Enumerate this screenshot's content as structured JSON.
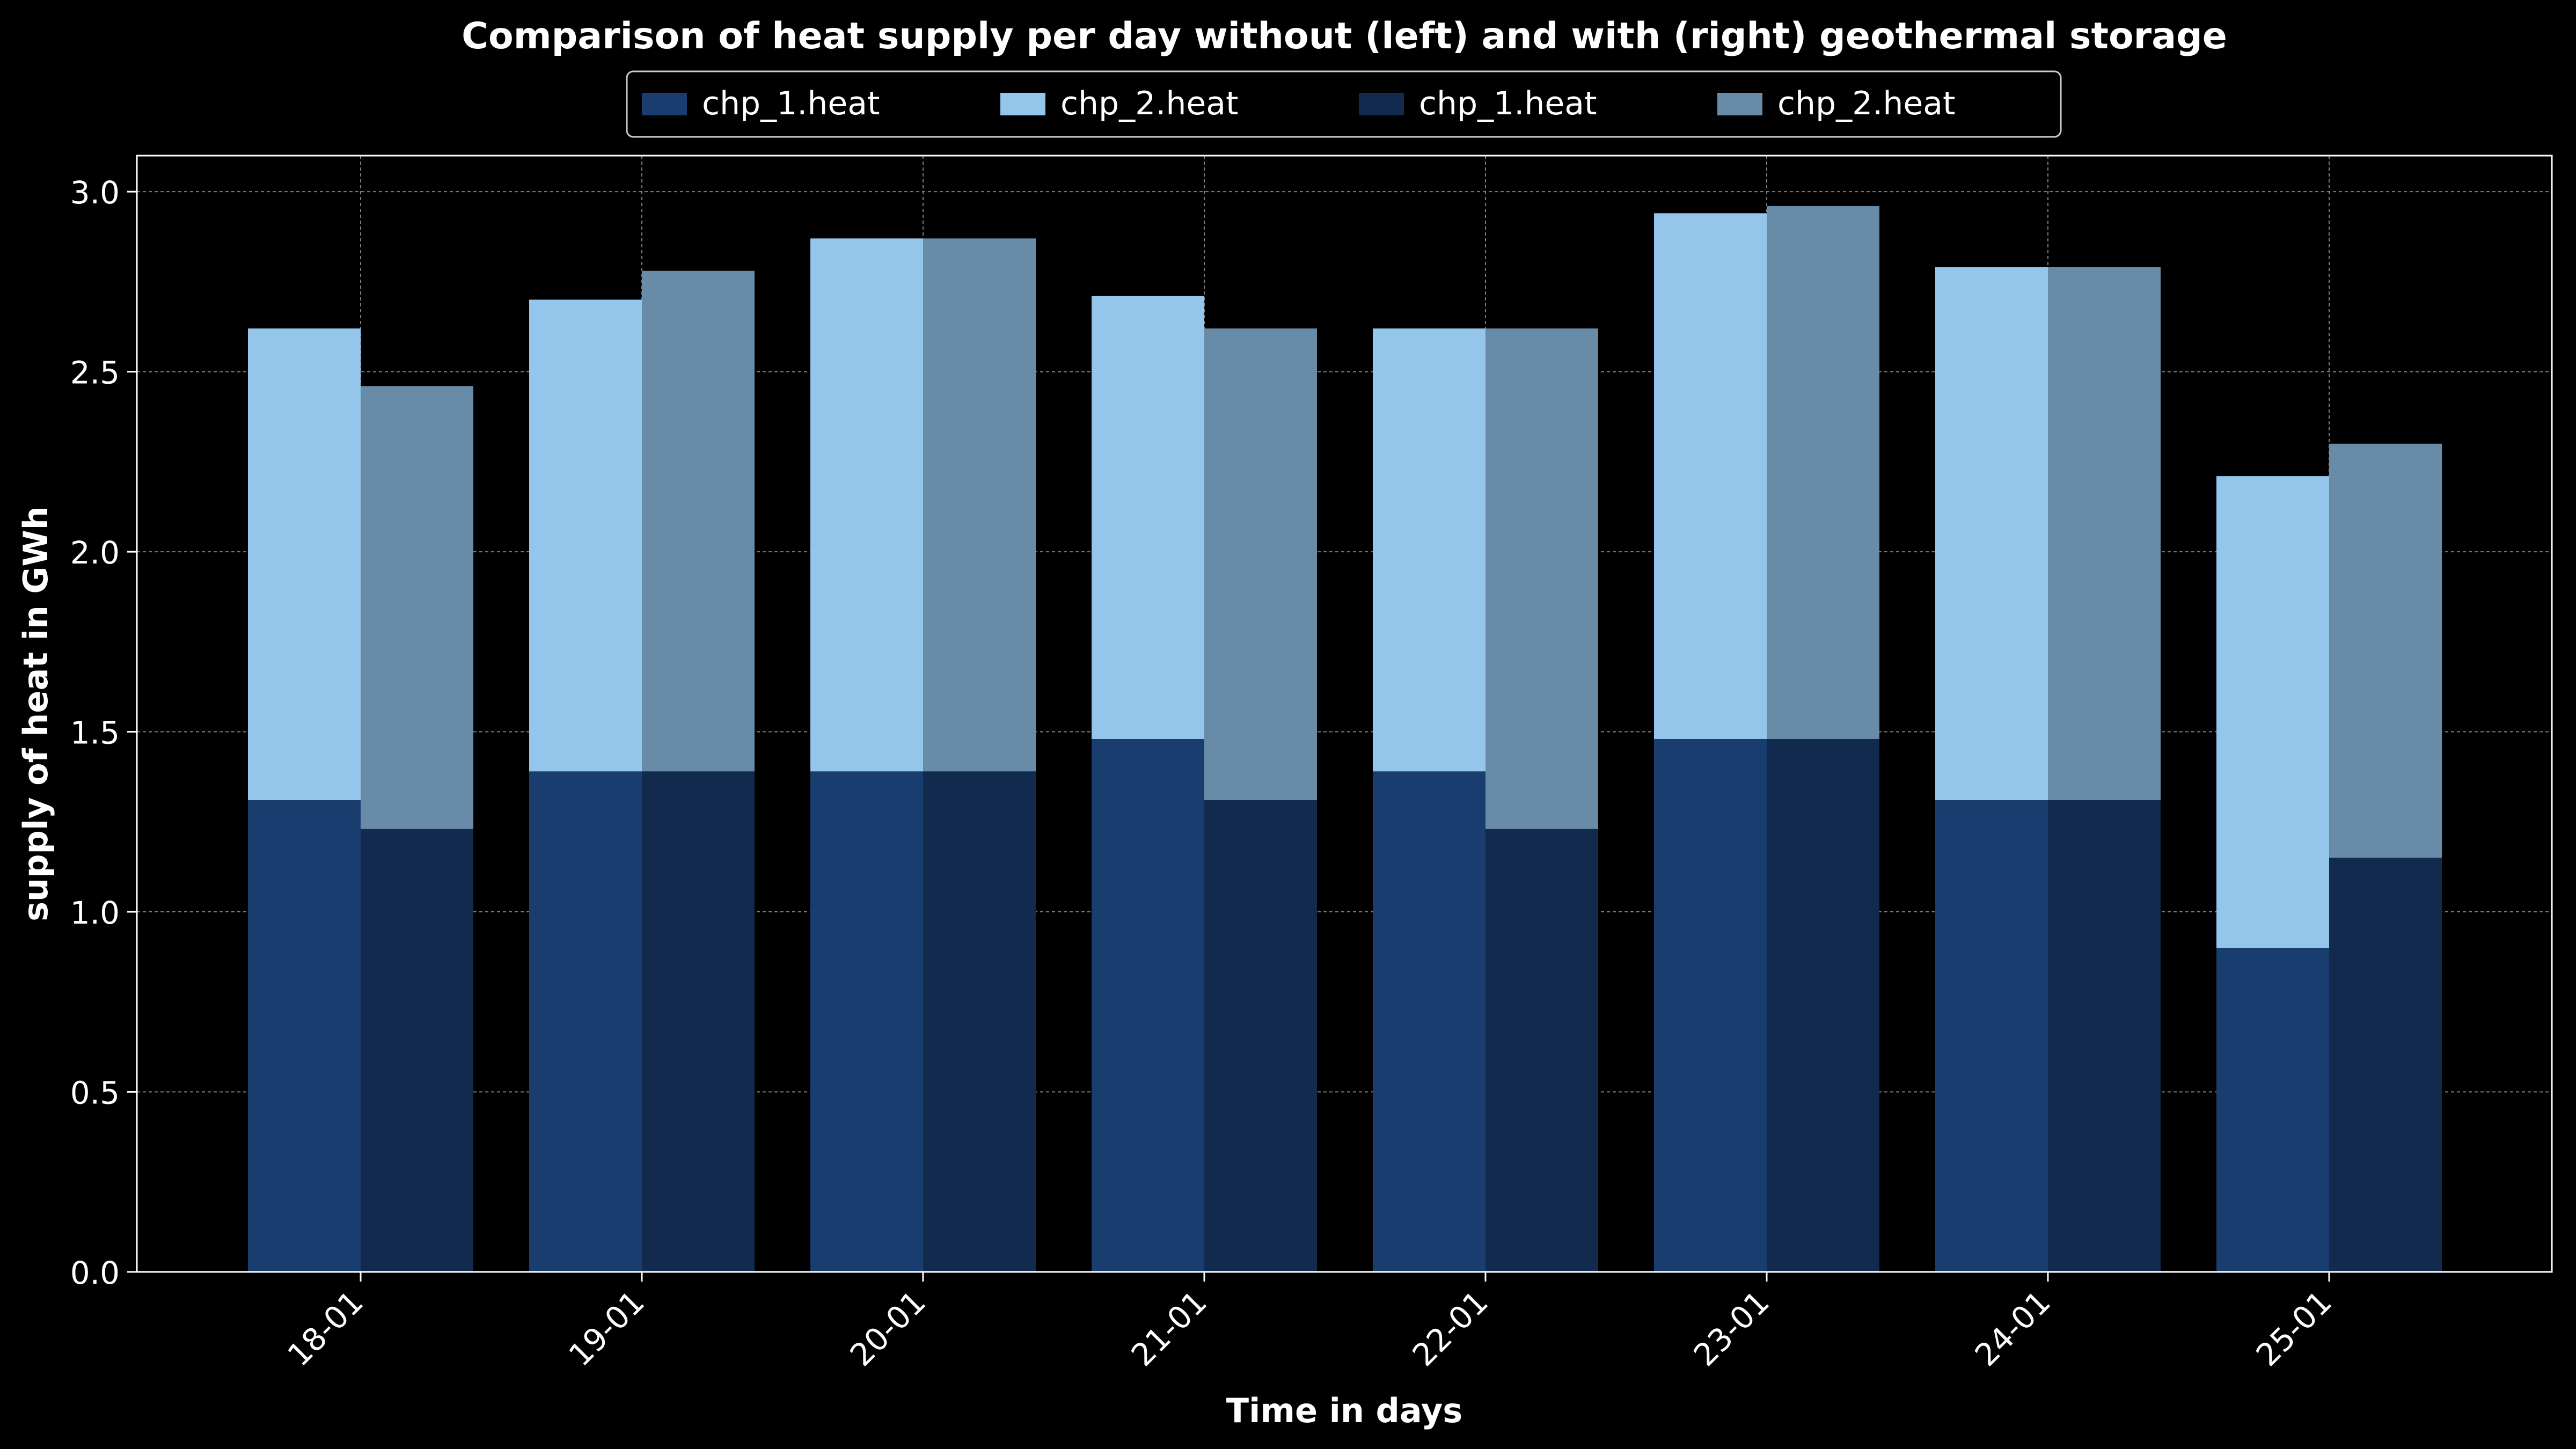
{
  "chart_data": {
    "type": "bar",
    "title": "Comparison of heat supply per day without (left) and with (right) geothermal storage",
    "xlabel": "Time in days",
    "ylabel": "supply of heat in GWh",
    "ylim": [
      0,
      3.1
    ],
    "yticks": [
      0.0,
      0.5,
      1.0,
      1.5,
      2.0,
      2.5,
      3.0
    ],
    "ytick_labels": [
      "0.0",
      "0.5",
      "1.0",
      "1.5",
      "2.0",
      "2.5",
      "3.0"
    ],
    "grid": true,
    "legend_position": "top-center",
    "categories": [
      "18-01",
      "19-01",
      "20-01",
      "21-01",
      "22-01",
      "23-01",
      "24-01",
      "25-01"
    ],
    "groups": [
      {
        "position": "left",
        "series": [
          {
            "name": "chp_1.heat",
            "color": "#1a3d6f",
            "values": [
              1.31,
              1.39,
              1.39,
              1.48,
              1.39,
              1.48,
              1.31,
              0.9
            ]
          },
          {
            "name": "chp_2.heat",
            "color": "#94c6eb",
            "values": [
              1.31,
              1.31,
              1.48,
              1.23,
              1.23,
              1.46,
              1.48,
              1.31
            ]
          }
        ]
      },
      {
        "position": "right",
        "series": [
          {
            "name": "chp_1.heat",
            "color": "#112a4e",
            "values": [
              1.23,
              1.39,
              1.39,
              1.31,
              1.23,
              1.48,
              1.31,
              1.15
            ]
          },
          {
            "name": "chp_2.heat",
            "color": "#688ca7",
            "values": [
              1.23,
              1.39,
              1.48,
              1.31,
              1.39,
              1.48,
              1.48,
              1.15
            ]
          }
        ]
      }
    ]
  }
}
